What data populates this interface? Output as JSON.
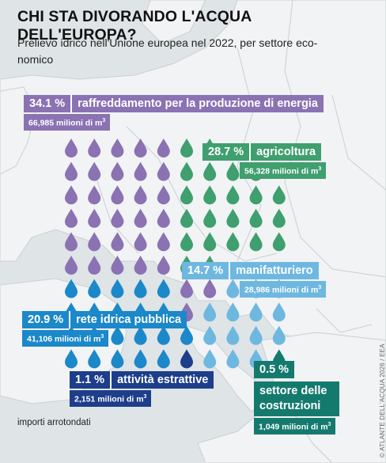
{
  "title": "CHI STA DIVORANDO L'ACQUA DELL'EUROPA?",
  "subtitle": "Prelievo idrico nell'Unione europea nel 2022, per settore eco-nomico",
  "note": "importi arrotondati",
  "credit": "© ATLANTE DELL'ACQUA 2026 / EEA",
  "unit_suffix": "milioni di m",
  "chart_data": {
    "type": "pictogram",
    "title": "CHI STA DIVORANDO L'ACQUA DELL'EUROPA?",
    "subtitle": "Prelievo idrico nell'Unione europea nel 2022, per settore economico",
    "unit": "milioni di m³",
    "drops_total": 100,
    "grid_rows": 10,
    "grid_cols": 10,
    "series": [
      {
        "name": "raffreddamento per la produzione di energia",
        "percent": "34.1 %",
        "share": 34.1,
        "volume": "66,985 milioni di m³",
        "value": 66985,
        "drops": 34,
        "color": "#8a72b3"
      },
      {
        "name": "agricoltura",
        "percent": "28.7 %",
        "share": 28.7,
        "volume": "56,328 milioni di m³",
        "value": 56328,
        "drops": 29,
        "color": "#3f9f6e"
      },
      {
        "name": "manifatturiero",
        "percent": "14.7 %",
        "share": 14.7,
        "volume": "28,986 milioni di m³",
        "value": 28986,
        "drops": 15,
        "color": "#6eb8e0"
      },
      {
        "name": "rete idrica pubblica",
        "percent": "20.9 %",
        "share": 20.9,
        "volume": "41,106 milioni di m³",
        "value": 41106,
        "drops": 20,
        "color": "#1b88c9"
      },
      {
        "name": "attività estrattive",
        "percent": "1.1 %",
        "share": 1.1,
        "volume": "2,151 milioni di m³",
        "value": 2151,
        "drops": 1,
        "color": "#1d3e8a"
      },
      {
        "name": "settore delle costruzioni",
        "percent": "0.5 %",
        "share": 0.5,
        "volume": "1,049 milioni di m³",
        "value": 1049,
        "drops": 1,
        "color": "#157a6e"
      }
    ]
  },
  "labels": [
    {
      "key": "energia",
      "percent": "34.1 %",
      "name": "raffreddamento per la produzione di energia",
      "volume": "66,985 milioni di m",
      "color": "#8a72b3"
    },
    {
      "key": "agricoltura",
      "percent": "28.7 %",
      "name": "agricoltura",
      "volume": "56,328 milioni di m",
      "color": "#3f9f6e"
    },
    {
      "key": "manifatturiero",
      "percent": "14.7 %",
      "name": "manifatturiero",
      "volume": "28,986 milioni di m",
      "color": "#6eb8e0"
    },
    {
      "key": "rete",
      "percent": "20.9 %",
      "name": "rete idrica pubblica",
      "volume": "41,106 milioni di m",
      "color": "#1b88c9"
    },
    {
      "key": "estrattive",
      "percent": "1.1 %",
      "name": "attività estrattive",
      "volume": "2,151 milioni di m",
      "color": "#1d3e8a"
    },
    {
      "key": "costruzioni",
      "percent": "0.5 %",
      "name": "settore delle costruzioni",
      "volume": "1,049 milioni di m",
      "color": "#157a6e"
    }
  ]
}
